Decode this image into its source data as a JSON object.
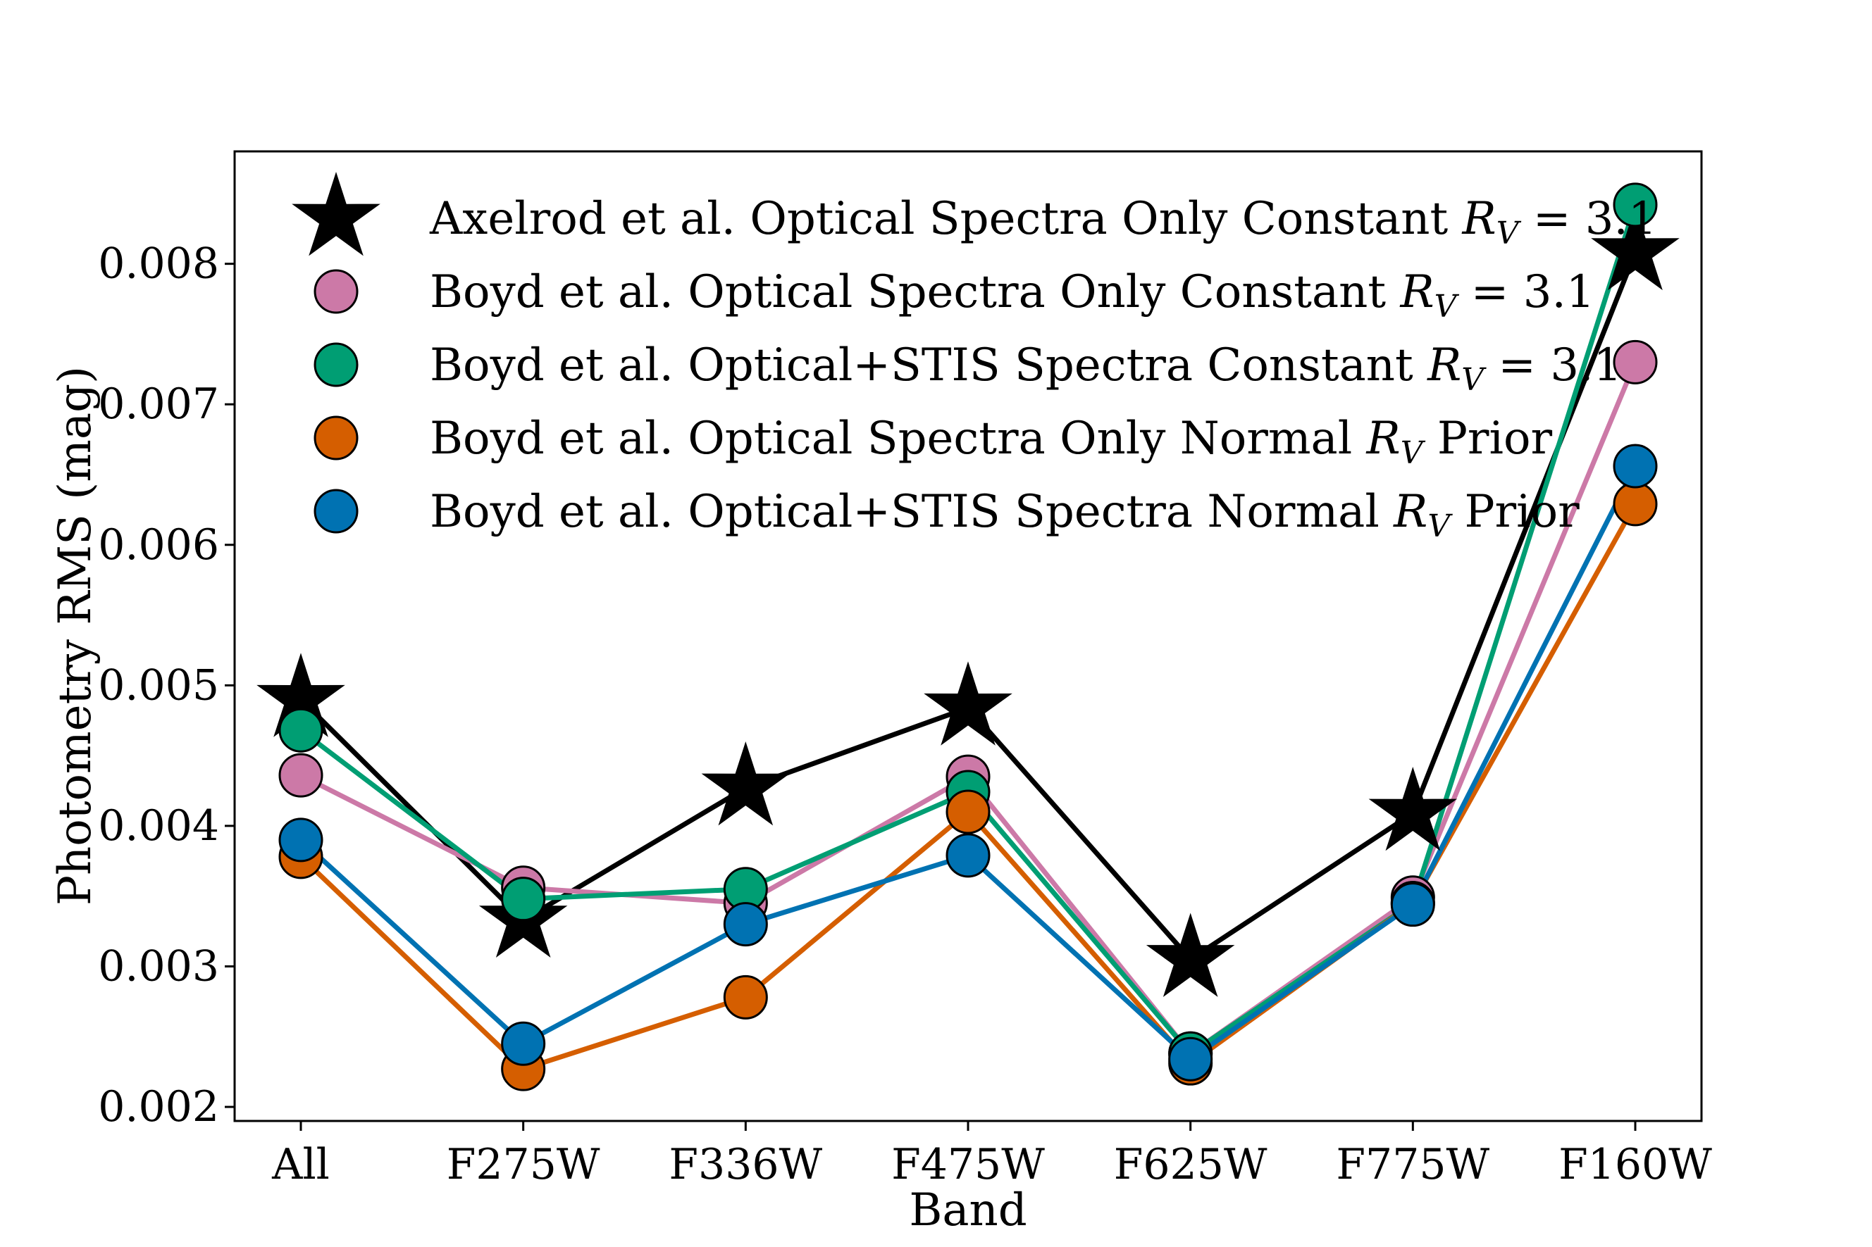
{
  "chart_data": {
    "type": "line",
    "title": "",
    "xlabel": "Band",
    "ylabel": "Photometry RMS (mag)",
    "categories": [
      "All",
      "F275W",
      "F336W",
      "F475W",
      "F625W",
      "F775W",
      "F160W"
    ],
    "ylim": [
      0.0019,
      0.0088
    ],
    "yticks": [
      "0.002",
      "0.003",
      "0.004",
      "0.005",
      "0.006",
      "0.007",
      "0.008"
    ],
    "ytick_values": [
      0.002,
      0.003,
      0.004,
      0.005,
      0.006,
      0.007,
      0.008
    ],
    "grid": false,
    "legend_position": "top-left",
    "series": [
      {
        "name": "Axelrod et al. Optical Spectra Only Constant R_V = 3.1",
        "legend_text": "Axelrod et al. Optical Spectra Only Constant",
        "legend_math": "R",
        "legend_sub": "V",
        "legend_tail": " = 3.1",
        "marker": "star",
        "color": "#000000",
        "values": [
          0.0049,
          0.00333,
          0.00427,
          0.00484,
          0.00305,
          0.00409,
          0.00808
        ]
      },
      {
        "name": "Boyd et al. Optical Spectra Only Constant R_V = 3.1",
        "legend_text": "Boyd et al. Optical Spectra Only Constant",
        "legend_math": "R",
        "legend_sub": "V",
        "legend_tail": " = 3.1",
        "marker": "circle",
        "color": "#CC79A7",
        "values": [
          0.00436,
          0.00356,
          0.00345,
          0.00435,
          0.00238,
          0.00349,
          0.0073
        ]
      },
      {
        "name": "Boyd et al. Optical+STIS Spectra Constant R_V = 3.1",
        "legend_text": "Boyd et al. Optical+STIS Spectra Constant",
        "legend_math": "R",
        "legend_sub": "V",
        "legend_tail": " = 3.1",
        "marker": "circle",
        "color": "#009E73",
        "values": [
          0.00468,
          0.00348,
          0.00355,
          0.00424,
          0.00238,
          0.00345,
          0.00842
        ]
      },
      {
        "name": "Boyd et al. Optical Spectra Only Normal R_V Prior",
        "legend_text": "Boyd et al. Optical Spectra Only Normal",
        "legend_math": "R",
        "legend_sub": "V",
        "legend_tail": " Prior",
        "marker": "circle",
        "color": "#D55E00",
        "values": [
          0.00378,
          0.00227,
          0.00278,
          0.0041,
          0.00231,
          0.00345,
          0.00629
        ]
      },
      {
        "name": "Boyd et al. Optical+STIS Spectra Normal R_V Prior",
        "legend_text": "Boyd et al. Optical+STIS Spectra Normal",
        "legend_math": "R",
        "legend_sub": "V",
        "legend_tail": " Prior",
        "marker": "circle",
        "color": "#0072B2",
        "values": [
          0.0039,
          0.00245,
          0.0033,
          0.00379,
          0.00234,
          0.00344,
          0.00656
        ]
      }
    ]
  }
}
